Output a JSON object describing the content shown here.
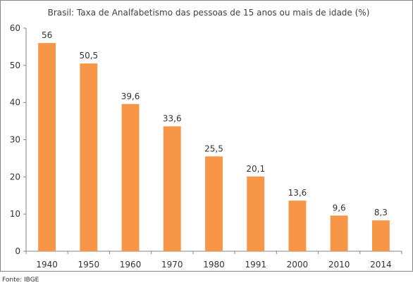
{
  "chart_data": {
    "type": "bar",
    "title": "Brasil: Taxa de Analfabetismo das pessoas de 15 anos ou mais de idade (%)",
    "categories": [
      "1940",
      "1950",
      "1960",
      "1970",
      "1980",
      "1991",
      "2000",
      "2010",
      "2014"
    ],
    "values": [
      56,
      50.5,
      39.6,
      33.6,
      25.5,
      20.1,
      13.6,
      9.6,
      8.3
    ],
    "value_labels": [
      "56",
      "50,5",
      "39,6",
      "33,6",
      "25,5",
      "20,1",
      "13,6",
      "9,6",
      "8,3"
    ],
    "yticks": [
      0,
      10,
      20,
      30,
      40,
      50,
      60
    ],
    "ylim": [
      0,
      60
    ],
    "xlabel": "",
    "ylabel": "",
    "grid": false,
    "colors": {
      "bar": "#F79646",
      "axis": "#868686",
      "border": "#868686"
    }
  },
  "source": "Fonte: IBGE"
}
